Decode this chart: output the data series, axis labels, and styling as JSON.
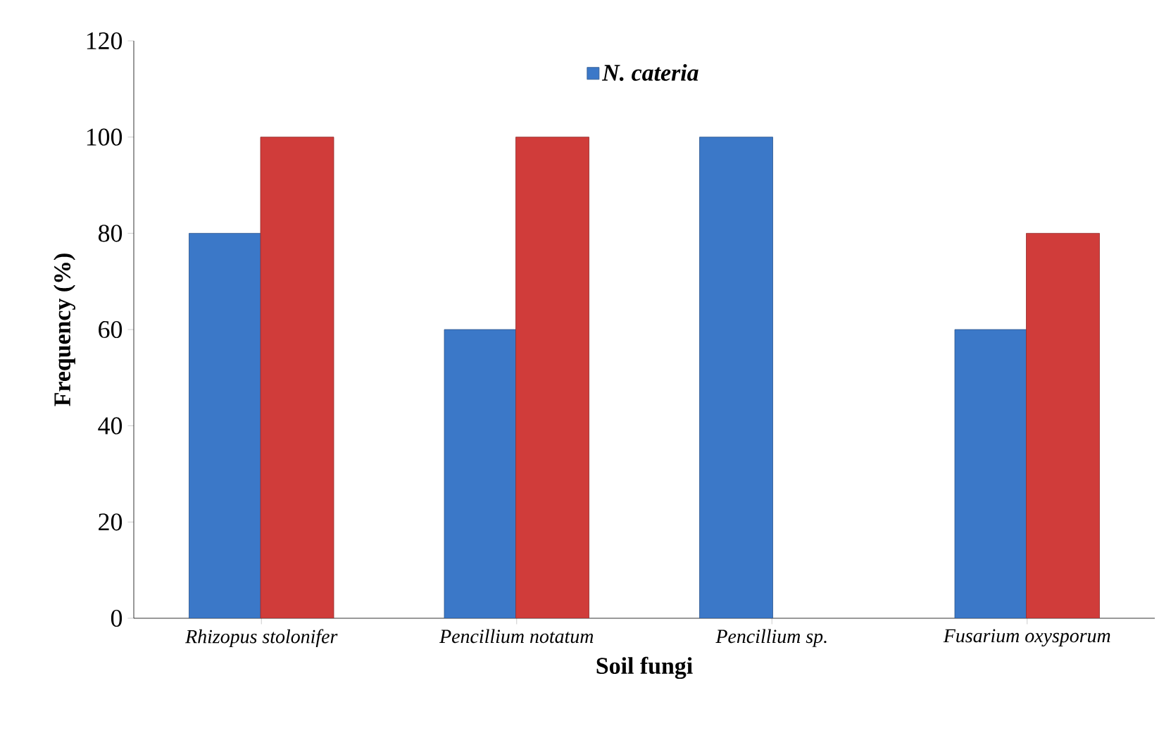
{
  "chart_data": {
    "type": "bar",
    "xlabel": "Soil fungi",
    "ylabel": "Frequency (%)",
    "categories": [
      "Rhizopus stolonifer",
      "Pencillium notatum",
      "Pencillium sp.",
      "Fusarium oxysporum"
    ],
    "series": [
      {
        "name": "N. cateria",
        "color": "#3b78c8",
        "values": [
          80,
          60,
          100,
          60
        ]
      },
      {
        "color": "#d03c3a",
        "values": [
          100,
          100,
          null,
          80
        ]
      }
    ],
    "ylim": [
      0,
      120
    ],
    "yticks": [
      0,
      20,
      40,
      60,
      80,
      100,
      120
    ],
    "legend": "top"
  }
}
